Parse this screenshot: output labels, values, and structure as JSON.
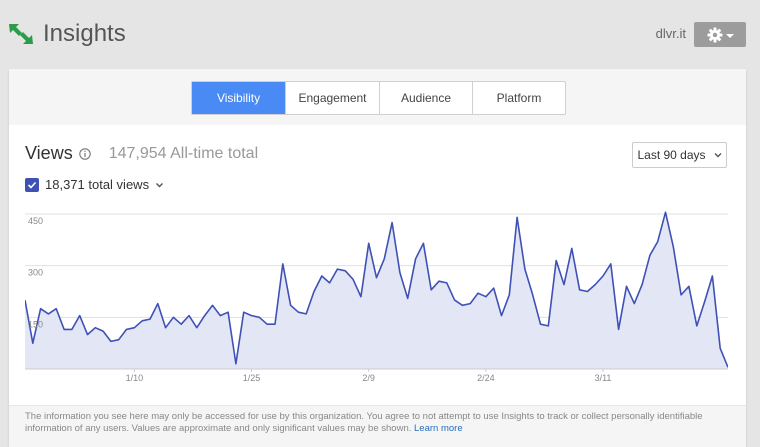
{
  "app": {
    "title": "Insights",
    "account": "dlvr.it"
  },
  "tabs": [
    {
      "label": "Visibility",
      "active": true
    },
    {
      "label": "Engagement",
      "active": false
    },
    {
      "label": "Audience",
      "active": false
    },
    {
      "label": "Platform",
      "active": false
    }
  ],
  "views": {
    "title": "Views",
    "alltime_total": "147,954 All-time total",
    "series_label": "18,371 total views",
    "range": "Last 90 days"
  },
  "footer": {
    "text": "The information you see here may only be accessed for use by this organization. You agree to not attempt to use Insights to track or collect personally identifiable information of any users. Values are approximate and only significant values may be shown.",
    "link": "Learn more"
  },
  "colors": {
    "accent": "#4a8af4",
    "series_line": "#3f51b5",
    "series_fill": "#e3e6f5",
    "logo": "#2a9d4a"
  },
  "icons": {
    "logo": "insights-arrows-icon",
    "gear": "gear-icon",
    "info": "info-icon",
    "checkbox": "check-icon",
    "dropdown": "chevron-down-icon"
  },
  "chart_data": {
    "type": "area",
    "ylim": [
      0,
      450
    ],
    "yticks": [
      "150",
      "300",
      "450"
    ],
    "xticks": [
      {
        "label": "1/10",
        "index": 14
      },
      {
        "label": "1/25",
        "index": 29
      },
      {
        "label": "2/9",
        "index": 44
      },
      {
        "label": "2/24",
        "index": 59
      },
      {
        "label": "3/11",
        "index": 74
      }
    ],
    "grid": true,
    "series": [
      {
        "values": [
          200,
          75,
          175,
          160,
          175,
          115,
          115,
          155,
          100,
          120,
          110,
          80,
          85,
          115,
          120,
          140,
          145,
          190,
          120,
          150,
          130,
          155,
          120,
          155,
          185,
          155,
          165,
          15,
          165,
          155,
          150,
          130,
          130,
          305,
          185,
          165,
          160,
          225,
          270,
          250,
          290,
          285,
          260,
          210,
          365,
          265,
          320,
          425,
          280,
          205,
          320,
          365,
          230,
          255,
          250,
          200,
          185,
          190,
          220,
          210,
          235,
          155,
          215,
          440,
          290,
          215,
          130,
          125,
          315,
          245,
          350,
          230,
          225,
          245,
          270,
          305,
          115,
          240,
          190,
          245,
          330,
          370,
          455,
          355,
          215,
          240,
          125,
          195,
          270,
          60,
          5
        ]
      }
    ]
  }
}
